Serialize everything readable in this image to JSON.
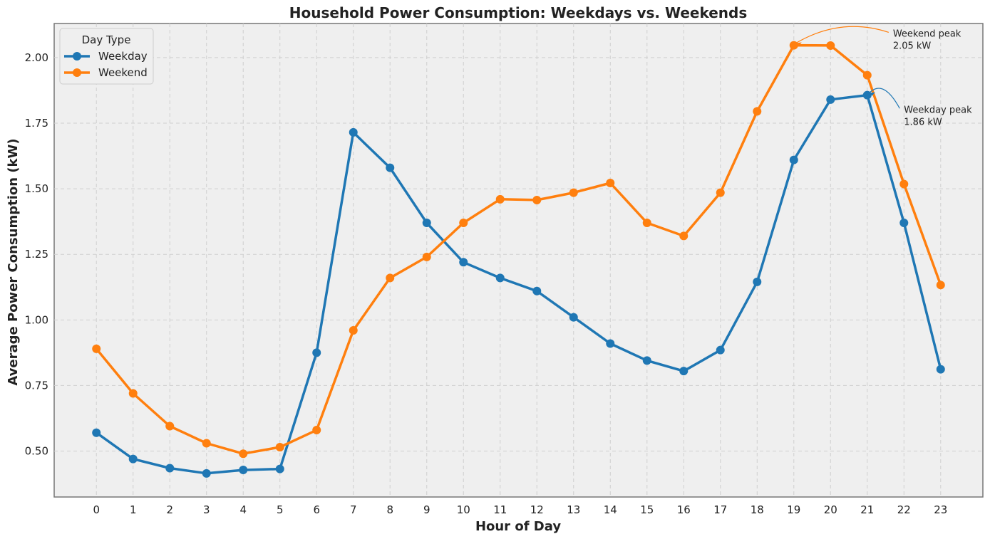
{
  "chart_data": {
    "type": "line",
    "title": "Household Power Consumption: Weekdays vs. Weekends",
    "xlabel": "Hour of Day",
    "ylabel": "Average Power Consumption (kW)",
    "x": [
      0,
      1,
      2,
      3,
      4,
      5,
      6,
      7,
      8,
      9,
      10,
      11,
      12,
      13,
      14,
      15,
      16,
      17,
      18,
      19,
      20,
      21,
      22,
      23
    ],
    "x_tick_labels": [
      "0",
      "1",
      "2",
      "3",
      "4",
      "5",
      "6",
      "7",
      "8",
      "9",
      "10",
      "11",
      "12",
      "13",
      "14",
      "15",
      "16",
      "17",
      "18",
      "19",
      "20",
      "21",
      "22",
      "23"
    ],
    "y_ticks": [
      0.5,
      0.75,
      1.0,
      1.25,
      1.5,
      1.75,
      2.0
    ],
    "y_tick_labels": [
      "0.50",
      "0.75",
      "1.00",
      "1.25",
      "1.50",
      "1.75",
      "2.00"
    ],
    "xlim": [
      -1.15,
      24.15
    ],
    "ylim": [
      0.325,
      2.13
    ],
    "grid": true,
    "legend": {
      "title": "Day Type",
      "placement": "top-left"
    },
    "series": [
      {
        "name": "Weekday",
        "color": "#1f77b4",
        "values": [
          0.57,
          0.47,
          0.435,
          0.415,
          0.428,
          0.432,
          0.875,
          1.715,
          1.58,
          1.37,
          1.22,
          1.16,
          1.11,
          1.01,
          0.91,
          0.845,
          0.805,
          0.885,
          1.145,
          1.61,
          1.84,
          1.857,
          1.37,
          0.812
        ]
      },
      {
        "name": "Weekend",
        "color": "#ff7f0e",
        "values": [
          0.89,
          0.72,
          0.595,
          0.53,
          0.49,
          0.515,
          0.58,
          0.96,
          1.16,
          1.24,
          1.37,
          1.46,
          1.457,
          1.485,
          1.522,
          1.37,
          1.32,
          1.485,
          1.795,
          2.047,
          2.046,
          1.933,
          1.518,
          1.133
        ]
      }
    ],
    "annotations": [
      {
        "series": "Weekend",
        "x": 19,
        "y": 2.05,
        "line1": "Weekend peak",
        "line2": "2.05 kW",
        "text_x": 21.7,
        "text_y": 2.08,
        "color": "#ff7f0e"
      },
      {
        "series": "Weekday",
        "x": 21,
        "y": 1.86,
        "line1": "Weekday peak",
        "line2": "1.86 kW",
        "text_x": 22.0,
        "text_y": 1.79,
        "color": "#1f77b4"
      }
    ]
  }
}
